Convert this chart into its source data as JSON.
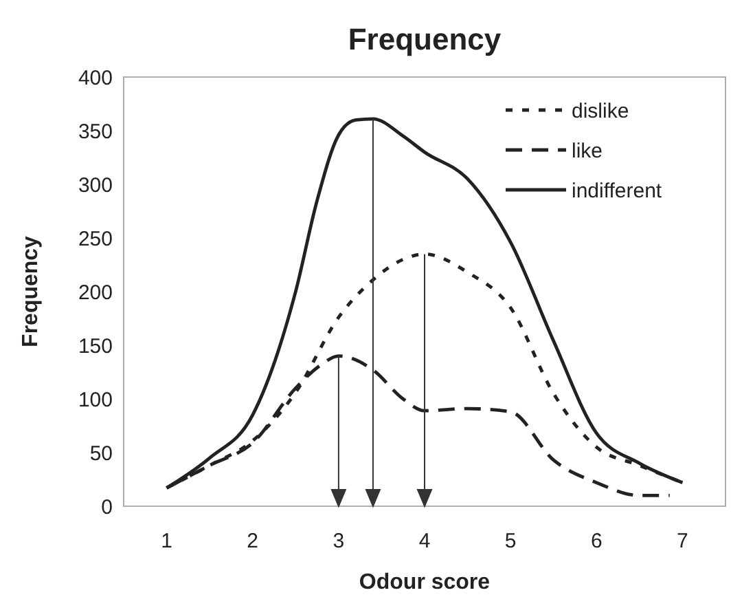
{
  "chart_data": {
    "type": "line",
    "title": "Frequency",
    "xlabel": "Odour score",
    "ylabel": "Frequency",
    "xlim": [
      0.5,
      7.5
    ],
    "xticks": [
      1,
      2,
      3,
      4,
      5,
      6,
      7
    ],
    "ylim": [
      0,
      400
    ],
    "yticks": [
      0,
      50,
      100,
      150,
      200,
      250,
      300,
      350,
      400
    ],
    "grid": false,
    "legend": "top right",
    "marker": "none",
    "series": [
      {
        "name": "dislike",
        "color": "#222222",
        "line_style": "dotted",
        "x": [
          1,
          1.5,
          2,
          2.5,
          3,
          3.4,
          3.75,
          4,
          4.5,
          5,
          5.5,
          6,
          6.5,
          7
        ],
        "values": [
          17,
          38,
          61,
          106,
          176,
          211,
          230,
          235,
          218,
          185,
          105,
          55,
          38,
          22
        ]
      },
      {
        "name": "like",
        "color": "#222222",
        "line_style": "dashed",
        "x": [
          1,
          1.5,
          2,
          2.5,
          2.8,
          3,
          3.4,
          3.75,
          4,
          4.5,
          5,
          5.5,
          6,
          6.5,
          6.85
        ],
        "values": [
          17,
          38,
          59,
          110,
          132,
          140,
          127,
          100,
          89,
          91,
          88,
          43,
          22,
          10,
          10
        ]
      },
      {
        "name": "indifferent",
        "color": "#222222",
        "line_style": "solid",
        "x": [
          1,
          1.5,
          2,
          2.5,
          2.75,
          3,
          3.2,
          3.4,
          3.75,
          4,
          4.5,
          5,
          5.5,
          6,
          6.5,
          7
        ],
        "values": [
          17,
          45,
          85,
          200,
          285,
          346,
          360,
          361,
          345,
          330,
          305,
          246,
          154,
          68,
          40,
          22
        ]
      }
    ],
    "ref_lines": [
      {
        "axis": "x",
        "value": 3,
        "color": "#333333"
      },
      {
        "axis": "x",
        "value": 3.4,
        "color": "#333333"
      },
      {
        "axis": "x",
        "value": 4,
        "color": "#333333"
      }
    ]
  }
}
